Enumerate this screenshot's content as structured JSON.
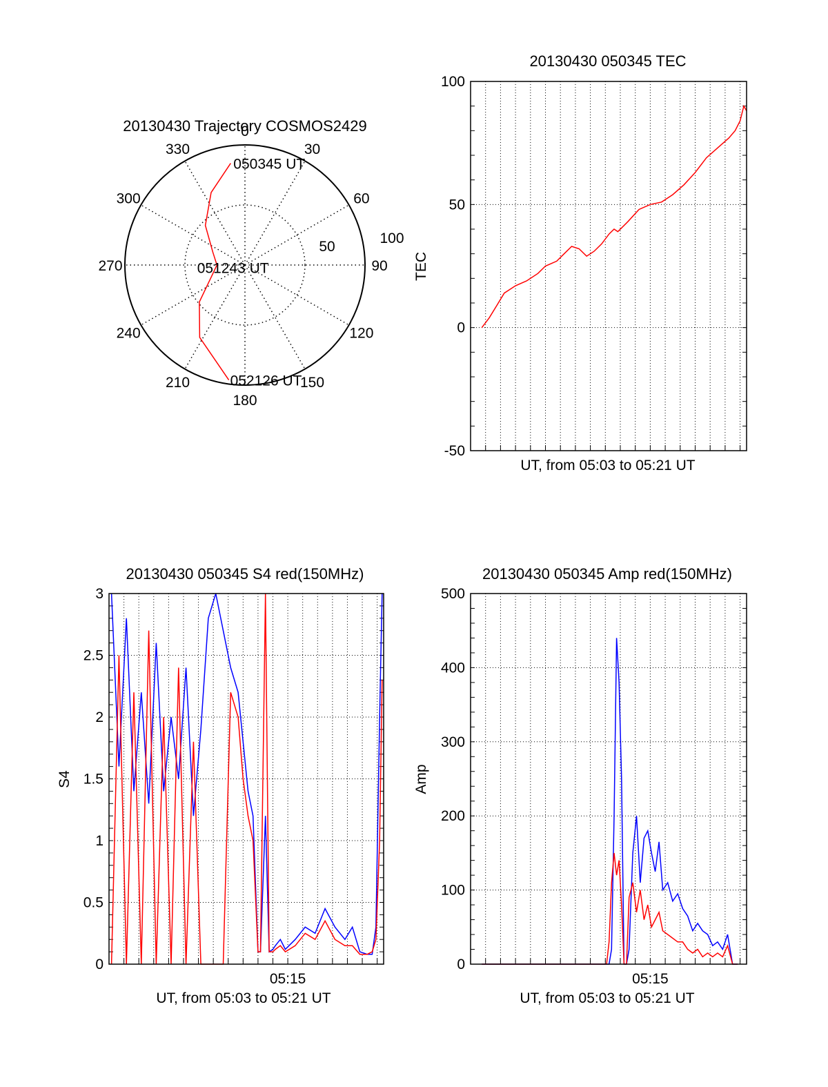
{
  "colors": {
    "red": "#ff0000",
    "blue": "#0000ff",
    "axis": "#000000",
    "grid": "#000000"
  },
  "polar": {
    "title": "20130430 Trajectory COSMOS2429",
    "azimuth_labels": [
      "0",
      "30",
      "60",
      "90",
      "120",
      "150",
      "180",
      "210",
      "240",
      "270",
      "300",
      "330"
    ],
    "radial_labels": [
      "50",
      "100"
    ],
    "annotations": [
      {
        "text": "050345 UT",
        "az": 352,
        "el": 13
      },
      {
        "text": "051243 UT",
        "az": 290,
        "el": 86
      },
      {
        "text": "052126 UT",
        "az": 188,
        "el": 3
      }
    ],
    "trajectory": [
      {
        "az": 352,
        "el": 13
      },
      {
        "az": 335,
        "el": 30
      },
      {
        "az": 315,
        "el": 48
      },
      {
        "az": 292,
        "el": 64
      },
      {
        "az": 270,
        "el": 69
      },
      {
        "az": 250,
        "el": 63
      },
      {
        "az": 231,
        "el": 46
      },
      {
        "az": 212,
        "el": 26
      },
      {
        "az": 188,
        "el": 3
      }
    ]
  },
  "chart_data": [
    {
      "type": "line",
      "title": "20130430 050345 TEC",
      "xlabel": "UT, from 05:03 to 05:21 UT",
      "ylabel": "TEC",
      "xlim": [
        "05:03:00",
        "05:21:26"
      ],
      "ylim": [
        -50,
        100
      ],
      "yticks": [
        "-50",
        "0",
        "50",
        "100"
      ],
      "grid": true,
      "series": [
        {
          "color": "#ff0000",
          "x": [
            "05:03:45",
            "05:04:15",
            "05:04:45",
            "05:05:15",
            "05:06:00",
            "05:06:45",
            "05:07:30",
            "05:08:00",
            "05:08:45",
            "05:09:15",
            "05:09:45",
            "05:10:15",
            "05:10:45",
            "05:11:15",
            "05:11:45",
            "05:12:15",
            "05:12:35",
            "05:12:50",
            "05:13:30",
            "05:14:15",
            "05:15:00",
            "05:15:45",
            "05:16:30",
            "05:17:15",
            "05:18:00",
            "05:18:45",
            "05:19:30",
            "05:20:15",
            "05:20:40",
            "05:21:00",
            "05:21:15",
            "05:21:26"
          ],
          "y": [
            0,
            4,
            9,
            14,
            17,
            19,
            22,
            25,
            27,
            30,
            33,
            32,
            29,
            31,
            34,
            38,
            40,
            39,
            43,
            48,
            50,
            51,
            54,
            58,
            63,
            69,
            73,
            77,
            80,
            84,
            90,
            88
          ]
        }
      ]
    },
    {
      "type": "line",
      "title": "20130430 050345 S4 red(150MHz)",
      "xlabel": "UT, from 05:03 to 05:21 UT",
      "ylabel": "S4",
      "xlim": [
        "05:03:00",
        "05:21:26"
      ],
      "ylim": [
        0,
        3
      ],
      "yticks": [
        "0",
        "0.5",
        "1",
        "1.5",
        "2",
        "2.5",
        "3"
      ],
      "xtick_label": "05:15",
      "grid": true,
      "series": [
        {
          "color": "#0000ff",
          "x": [
            "05:03:10",
            "05:03:40",
            "05:04:10",
            "05:04:40",
            "05:05:10",
            "05:05:40",
            "05:06:10",
            "05:06:40",
            "05:07:10",
            "05:07:40",
            "05:08:10",
            "05:08:40",
            "05:09:10",
            "05:09:40",
            "05:10:10",
            "05:10:40",
            "05:11:10",
            "05:11:40",
            "05:12:00",
            "05:12:20",
            "05:12:40",
            "05:13:00",
            "05:13:10",
            "05:13:30",
            "05:13:45",
            "05:14:00",
            "05:14:10",
            "05:14:30",
            "05:14:50",
            "05:15:30",
            "05:16:10",
            "05:16:50",
            "05:17:30",
            "05:18:10",
            "05:18:50",
            "05:19:20",
            "05:19:50",
            "05:20:20",
            "05:20:40",
            "05:20:55",
            "05:21:10",
            "05:21:20"
          ],
          "y": [
            3,
            1.6,
            2.8,
            1.4,
            2.2,
            1.3,
            2.6,
            1.4,
            2.0,
            1.5,
            2.4,
            1.2,
            1.9,
            2.8,
            3.0,
            2.7,
            2.4,
            2.2,
            1.8,
            1.4,
            1.2,
            0.1,
            0.1,
            1.2,
            0.1,
            0.12,
            0.15,
            0.2,
            0.12,
            0.2,
            0.3,
            0.25,
            0.45,
            0.3,
            0.2,
            0.3,
            0.1,
            0.08,
            0.08,
            0.3,
            2.0,
            3.0
          ]
        },
        {
          "color": "#ff0000",
          "x": [
            "05:03:10",
            "05:03:40",
            "05:04:10",
            "05:04:40",
            "05:05:10",
            "05:05:40",
            "05:06:10",
            "05:06:40",
            "05:07:10",
            "05:07:40",
            "05:08:10",
            "05:08:40",
            "05:09:10",
            "05:09:40",
            "05:10:10",
            "05:10:40",
            "05:11:10",
            "05:11:40",
            "05:12:00",
            "05:12:20",
            "05:12:40",
            "05:13:00",
            "05:13:10",
            "05:13:30",
            "05:13:45",
            "05:14:00",
            "05:14:10",
            "05:14:30",
            "05:14:50",
            "05:15:30",
            "05:16:10",
            "05:16:50",
            "05:17:30",
            "05:18:10",
            "05:18:50",
            "05:19:20",
            "05:19:50",
            "05:20:20",
            "05:20:40",
            "05:20:55",
            "05:21:10",
            "05:21:20"
          ],
          "y": [
            0,
            2.5,
            0,
            2.2,
            0,
            2.7,
            0,
            2.0,
            0,
            2.4,
            0,
            1.8,
            0,
            0,
            0,
            0,
            2.2,
            2.0,
            1.5,
            1.2,
            1.0,
            0.1,
            0.1,
            3.0,
            0.1,
            0.1,
            0.12,
            0.15,
            0.1,
            0.15,
            0.25,
            0.2,
            0.35,
            0.2,
            0.15,
            0.15,
            0.08,
            0.08,
            0.1,
            0.2,
            1.0,
            2.3
          ]
        }
      ]
    },
    {
      "type": "line",
      "title": "20130430 050345 Amp red(150MHz)",
      "xlabel": "UT, from 05:03 to 05:21 UT",
      "ylabel": "Amp",
      "xlim": [
        "05:03:00",
        "05:21:26"
      ],
      "ylim": [
        0,
        500
      ],
      "yticks": [
        "0",
        "100",
        "200",
        "300",
        "400",
        "500"
      ],
      "xtick_label": "05:15",
      "grid": true,
      "series": [
        {
          "color": "#0000ff",
          "x": [
            "05:03:45",
            "05:12:15",
            "05:12:25",
            "05:12:35",
            "05:12:45",
            "05:12:55",
            "05:13:05",
            "05:13:15",
            "05:13:25",
            "05:13:35",
            "05:13:50",
            "05:14:05",
            "05:14:20",
            "05:14:35",
            "05:14:50",
            "05:15:05",
            "05:15:20",
            "05:15:35",
            "05:15:50",
            "05:16:10",
            "05:16:30",
            "05:16:50",
            "05:17:10",
            "05:17:30",
            "05:17:50",
            "05:18:10",
            "05:18:30",
            "05:18:50",
            "05:19:10",
            "05:19:30",
            "05:19:50",
            "05:20:10",
            "05:20:30",
            "05:20:50"
          ],
          "y": [
            0,
            0,
            20,
            200,
            440,
            380,
            250,
            0,
            0,
            20,
            150,
            200,
            110,
            170,
            180,
            150,
            125,
            165,
            100,
            110,
            85,
            95,
            75,
            65,
            45,
            55,
            45,
            40,
            25,
            30,
            20,
            40,
            0,
            0
          ]
        },
        {
          "color": "#ff0000",
          "x": [
            "05:03:45",
            "05:12:05",
            "05:12:15",
            "05:12:25",
            "05:12:35",
            "05:12:45",
            "05:12:55",
            "05:13:05",
            "05:13:15",
            "05:13:25",
            "05:13:35",
            "05:13:50",
            "05:14:05",
            "05:14:20",
            "05:14:35",
            "05:14:50",
            "05:15:05",
            "05:15:20",
            "05:15:35",
            "05:15:50",
            "05:16:10",
            "05:16:30",
            "05:16:50",
            "05:17:10",
            "05:17:30",
            "05:17:50",
            "05:18:10",
            "05:18:30",
            "05:18:50",
            "05:19:10",
            "05:19:30",
            "05:19:50",
            "05:20:10",
            "05:20:30",
            "05:20:50"
          ],
          "y": [
            0,
            0,
            30,
            110,
            150,
            120,
            140,
            80,
            0,
            0,
            90,
            110,
            70,
            100,
            60,
            80,
            50,
            60,
            70,
            45,
            40,
            35,
            30,
            30,
            20,
            15,
            20,
            10,
            15,
            10,
            15,
            10,
            25,
            0,
            0
          ]
        }
      ]
    }
  ]
}
